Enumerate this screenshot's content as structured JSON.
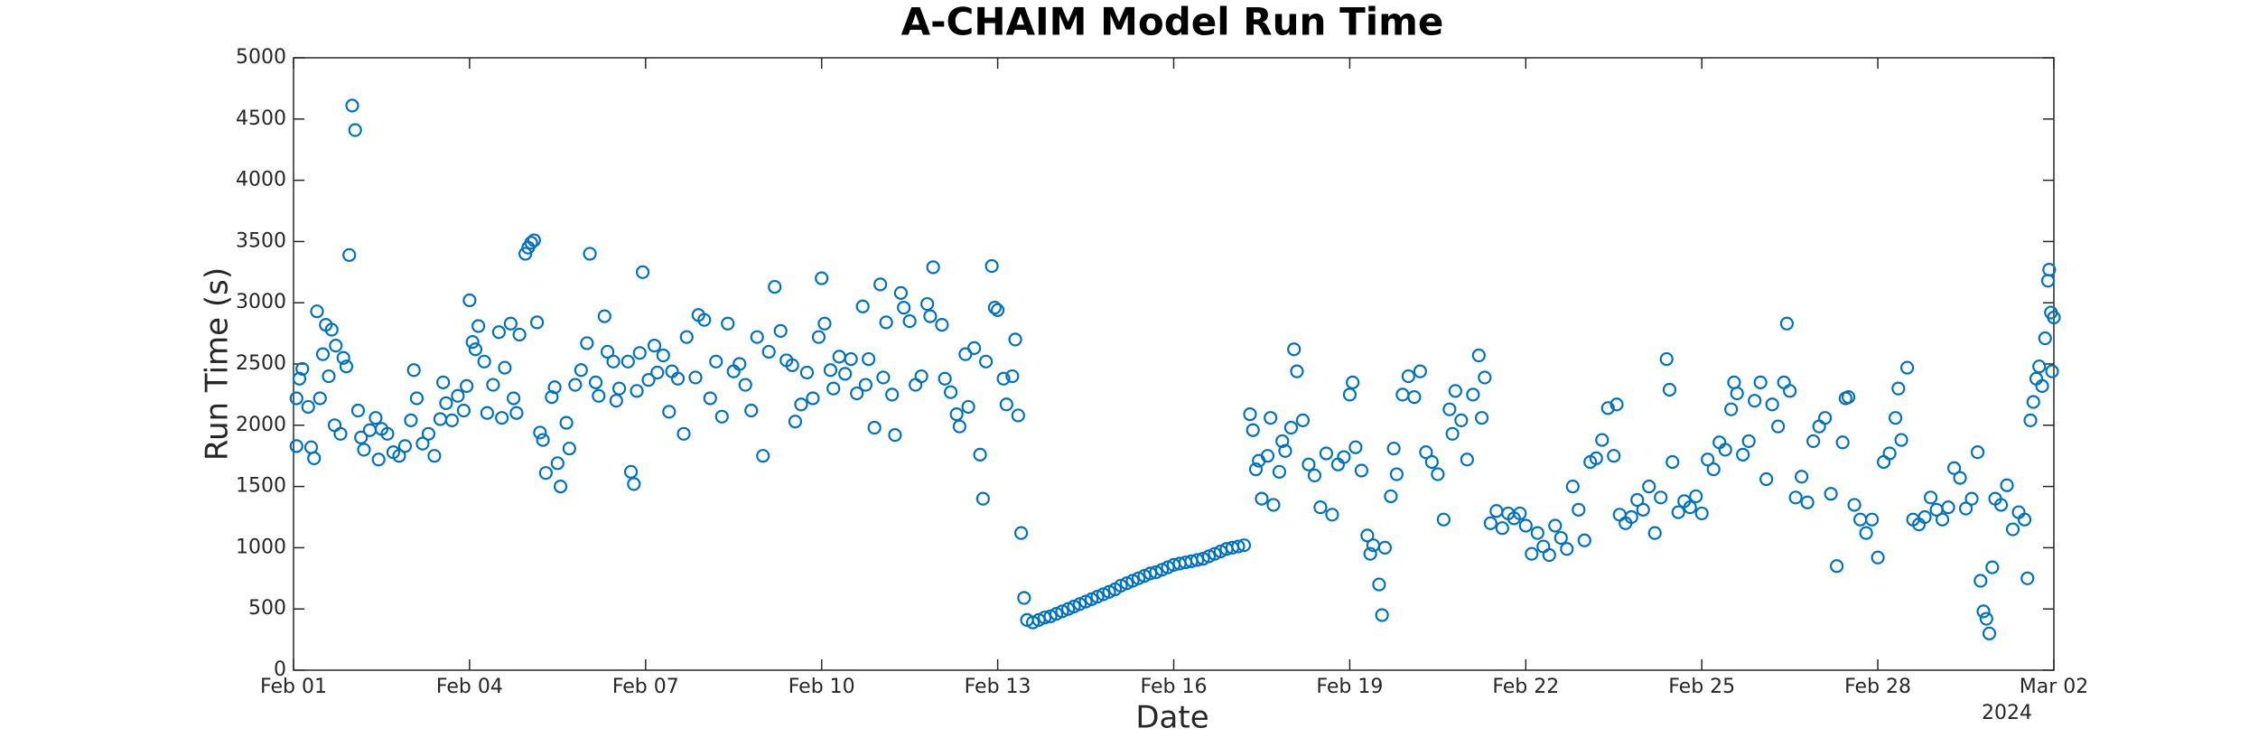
{
  "chart_data": {
    "type": "scatter",
    "title": "A-CHAIM Model Run Time",
    "x_label": "Date",
    "y_label": "Run Time (s)",
    "year_label": "2024",
    "color": "#0072bd",
    "grid": false,
    "xlim": [
      0,
      30
    ],
    "ylim": [
      0,
      5000
    ],
    "xticks": [
      {
        "value": 0,
        "label": "Feb 01"
      },
      {
        "value": 3,
        "label": "Feb 04"
      },
      {
        "value": 6,
        "label": "Feb 07"
      },
      {
        "value": 9,
        "label": "Feb 10"
      },
      {
        "value": 12,
        "label": "Feb 13"
      },
      {
        "value": 15,
        "label": "Feb 16"
      },
      {
        "value": 18,
        "label": "Feb 19"
      },
      {
        "value": 21,
        "label": "Feb 22"
      },
      {
        "value": 24,
        "label": "Feb 25"
      },
      {
        "value": 27,
        "label": "Feb 28"
      },
      {
        "value": 30,
        "label": "Mar 02"
      }
    ],
    "yticks": [
      0,
      500,
      1000,
      1500,
      2000,
      2500,
      3000,
      3500,
      4000,
      4500,
      5000
    ],
    "x": [
      0.05,
      0.05,
      0.1,
      0.15,
      0.25,
      0.3,
      0.35,
      0.4,
      0.45,
      0.5,
      0.55,
      0.6,
      0.65,
      0.7,
      0.72,
      0.8,
      0.85,
      0.9,
      0.95,
      1.0,
      1.05,
      1.1,
      1.15,
      1.2,
      1.3,
      1.4,
      1.45,
      1.5,
      1.6,
      1.7,
      1.8,
      1.9,
      2.0,
      2.05,
      2.1,
      2.2,
      2.3,
      2.4,
      2.5,
      2.55,
      2.6,
      2.7,
      2.8,
      2.9,
      2.95,
      3.0,
      3.05,
      3.1,
      3.15,
      3.25,
      3.3,
      3.4,
      3.5,
      3.55,
      3.6,
      3.7,
      3.75,
      3.8,
      3.85,
      3.95,
      4.0,
      4.05,
      4.1,
      4.15,
      4.2,
      4.25,
      4.3,
      4.4,
      4.45,
      4.5,
      4.55,
      4.65,
      4.7,
      4.8,
      4.9,
      5.0,
      5.05,
      5.15,
      5.2,
      5.3,
      5.35,
      5.45,
      5.5,
      5.55,
      5.7,
      5.75,
      5.8,
      5.85,
      5.9,
      5.95,
      6.05,
      6.15,
      6.2,
      6.3,
      6.4,
      6.45,
      6.55,
      6.65,
      6.7,
      6.85,
      6.9,
      7.0,
      7.1,
      7.2,
      7.3,
      7.4,
      7.5,
      7.6,
      7.7,
      7.8,
      7.9,
      8.0,
      8.1,
      8.2,
      8.3,
      8.4,
      8.5,
      8.55,
      8.65,
      8.75,
      8.85,
      8.95,
      9.0,
      9.05,
      9.15,
      9.2,
      9.3,
      9.4,
      9.5,
      9.6,
      9.7,
      9.75,
      9.8,
      9.9,
      10.0,
      10.05,
      10.1,
      10.2,
      10.25,
      10.35,
      10.4,
      10.5,
      10.6,
      10.7,
      10.8,
      10.85,
      10.9,
      11.05,
      11.1,
      11.2,
      11.3,
      11.35,
      11.45,
      11.5,
      11.6,
      11.7,
      11.75,
      11.8,
      11.9,
      11.95,
      12.0,
      12.1,
      12.15,
      12.25,
      12.3,
      12.35,
      12.4,
      12.45,
      12.5,
      12.6,
      12.7,
      12.8,
      12.9,
      13.0,
      13.1,
      13.2,
      13.3,
      13.4,
      13.5,
      13.6,
      13.7,
      13.8,
      13.9,
      14.0,
      14.1,
      14.2,
      14.3,
      14.4,
      14.5,
      14.6,
      14.7,
      14.8,
      14.9,
      15.0,
      15.1,
      15.2,
      15.3,
      15.4,
      15.5,
      15.6,
      15.7,
      15.8,
      15.9,
      16.0,
      16.1,
      16.2,
      16.3,
      16.35,
      16.4,
      16.45,
      16.5,
      16.6,
      16.65,
      16.7,
      16.8,
      16.85,
      16.9,
      17.0,
      17.05,
      17.1,
      17.2,
      17.3,
      17.4,
      17.5,
      17.6,
      17.7,
      17.8,
      17.9,
      18.0,
      18.05,
      18.1,
      18.2,
      18.3,
      18.35,
      18.4,
      18.5,
      18.55,
      18.6,
      18.7,
      18.75,
      18.8,
      18.9,
      19.0,
      19.1,
      19.2,
      19.3,
      19.4,
      19.5,
      19.6,
      19.7,
      19.75,
      19.8,
      19.9,
      20.0,
      20.1,
      20.2,
      20.25,
      20.3,
      20.4,
      20.5,
      20.6,
      20.7,
      20.8,
      20.9,
      21.0,
      21.1,
      21.2,
      21.3,
      21.4,
      21.5,
      21.6,
      21.7,
      21.8,
      21.9,
      22.0,
      22.1,
      22.2,
      22.3,
      22.4,
      22.5,
      22.55,
      22.6,
      22.7,
      22.8,
      22.9,
      23.0,
      23.1,
      23.2,
      23.3,
      23.4,
      23.45,
      23.5,
      23.6,
      23.7,
      23.8,
      23.9,
      24.0,
      24.1,
      24.2,
      24.3,
      24.4,
      24.5,
      24.55,
      24.6,
      24.7,
      24.8,
      24.9,
      25.0,
      25.1,
      25.2,
      25.3,
      25.4,
      25.45,
      25.5,
      25.6,
      25.7,
      25.8,
      25.9,
      26.0,
      26.1,
      26.2,
      26.3,
      26.4,
      26.45,
      26.5,
      26.6,
      26.7,
      26.8,
      26.9,
      27.0,
      27.1,
      27.2,
      27.3,
      27.35,
      27.4,
      27.5,
      27.6,
      27.7,
      27.8,
      27.9,
      28.0,
      28.1,
      28.2,
      28.3,
      28.4,
      28.5,
      28.6,
      28.7,
      28.75,
      28.8,
      28.85,
      28.9,
      28.95,
      29.0,
      29.1,
      29.2,
      29.3,
      29.4,
      29.5,
      29.55,
      29.6,
      29.65,
      29.7,
      29.75,
      29.8,
      29.85,
      29.9,
      29.92,
      29.95,
      29.97,
      30.0
    ],
    "values": [
      1830,
      2220,
      2380,
      2460,
      2150,
      1820,
      1730,
      2930,
      2220,
      2580,
      2820,
      2400,
      2780,
      2000,
      2650,
      1930,
      2550,
      2480,
      3390,
      4610,
      4410,
      2120,
      1900,
      1800,
      1960,
      2060,
      1720,
      1970,
      1930,
      1780,
      1750,
      1830,
      2040,
      2450,
      2220,
      1850,
      1930,
      1750,
      2050,
      2350,
      2180,
      2040,
      2240,
      2120,
      2320,
      3020,
      2680,
      2620,
      2810,
      2520,
      2100,
      2330,
      2760,
      2060,
      2470,
      2830,
      2220,
      2100,
      2740,
      3400,
      3450,
      3490,
      3510,
      2840,
      1940,
      1880,
      1610,
      2230,
      2310,
      1690,
      1500,
      2020,
      1810,
      2330,
      2450,
      2670,
      3400,
      2350,
      2240,
      2890,
      2600,
      2520,
      2200,
      2300,
      2520,
      1620,
      1520,
      2280,
      2590,
      3250,
      2370,
      2650,
      2430,
      2570,
      2110,
      2440,
      2380,
      1930,
      2720,
      2390,
      2900,
      2860,
      2220,
      2520,
      2070,
      2830,
      2440,
      2500,
      2330,
      2120,
      2720,
      1750,
      2600,
      3130,
      2770,
      2530,
      2490,
      2030,
      2170,
      2430,
      2220,
      2720,
      3200,
      2830,
      2450,
      2300,
      2560,
      2420,
      2540,
      2260,
      2970,
      2330,
      2540,
      1980,
      3150,
      2390,
      2840,
      2250,
      1920,
      3080,
      2960,
      2850,
      2330,
      2400,
      2990,
      2890,
      3290,
      2820,
      2380,
      2270,
      2090,
      1990,
      2580,
      2150,
      2630,
      1760,
      1400,
      2520,
      3300,
      2960,
      2940,
      2380,
      2170,
      2400,
      2700,
      2080,
      1120,
      590,
      410,
      390,
      410,
      430,
      440,
      460,
      480,
      500,
      520,
      540,
      560,
      580,
      600,
      620,
      640,
      660,
      690,
      710,
      730,
      750,
      770,
      790,
      800,
      820,
      840,
      860,
      870,
      880,
      890,
      900,
      910,
      930,
      950,
      970,
      990,
      1000,
      1010,
      1020,
      2090,
      1960,
      1640,
      1710,
      1400,
      1750,
      2060,
      1350,
      1620,
      1870,
      1790,
      1980,
      2620,
      2440,
      2040,
      1680,
      1590,
      1330,
      1770,
      1270,
      1680,
      1740,
      2250,
      2350,
      1820,
      1630,
      1100,
      950,
      1020,
      700,
      450,
      1000,
      1420,
      1810,
      1600,
      2250,
      2400,
      2230,
      2440,
      1780,
      1700,
      1600,
      1230,
      2130,
      1930,
      2280,
      2040,
      1720,
      2250,
      2570,
      2060,
      2390,
      1200,
      1300,
      1160,
      1280,
      1240,
      1280,
      1180,
      950,
      1120,
      1010,
      940,
      1180,
      1080,
      990,
      1500,
      1310,
      1060,
      1700,
      1730,
      1880,
      2140,
      1750,
      2170,
      1270,
      1200,
      1250,
      1390,
      1310,
      1500,
      1120,
      1410,
      2540,
      2290,
      1700,
      1290,
      1380,
      1330,
      1420,
      1280,
      1720,
      1640,
      1860,
      1800,
      2130,
      2350,
      2260,
      1760,
      1870,
      2200,
      2350,
      1560,
      2170,
      1990,
      2350,
      2830,
      2280,
      1410,
      1580,
      1370,
      1870,
      1990,
      2060,
      1440,
      850,
      1860,
      2220,
      2230,
      1350,
      1230,
      1120,
      1230,
      920,
      1700,
      1770,
      2060,
      2300,
      1880,
      2470,
      1230,
      1190,
      1250,
      1410,
      1310,
      1230,
      1330,
      1650,
      1570,
      1320,
      1400,
      1780,
      730,
      480,
      420,
      300,
      840,
      1400,
      1350,
      1510,
      1150,
      1290,
      1230,
      750,
      2040,
      2190,
      2380,
      2480,
      2320,
      2710,
      3180,
      3270,
      2920,
      2440,
      2880
    ]
  }
}
